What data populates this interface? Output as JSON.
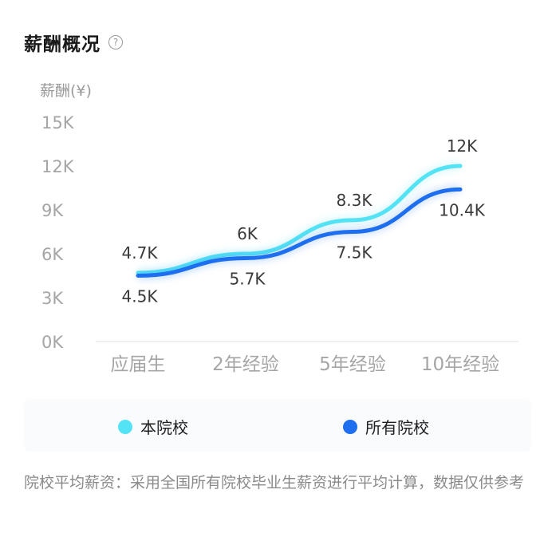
{
  "header": {
    "title": "薪酬概况",
    "help_icon": "?"
  },
  "chart_data": {
    "type": "line",
    "ylabel": "薪酬(¥)",
    "categories": [
      "应届生",
      "2年经验",
      "5年经验",
      "10年经验"
    ],
    "y_ticks": [
      "0K",
      "3K",
      "6K",
      "9K",
      "12K",
      "15K"
    ],
    "ylim": [
      0,
      15
    ],
    "series": [
      {
        "name": "本院校",
        "values": [
          4.7,
          6,
          8.3,
          12
        ],
        "labels": [
          "4.7K",
          "6K",
          "8.3K",
          "12K"
        ],
        "color": "#54e3f5"
      },
      {
        "name": "所有院校",
        "values": [
          4.5,
          5.7,
          7.5,
          10.4
        ],
        "labels": [
          "4.5K",
          "5.7K",
          "7.5K",
          "10.4K"
        ],
        "color": "#1e6ef0"
      }
    ],
    "grid": false
  },
  "legend": [
    {
      "label": "本院校",
      "color": "#54e3f5"
    },
    {
      "label": "所有院校",
      "color": "#1e6ef0"
    }
  ],
  "footnote": "院校平均薪资：采用全国所有院校毕业生薪资进行平均计算，数据仅供参考"
}
